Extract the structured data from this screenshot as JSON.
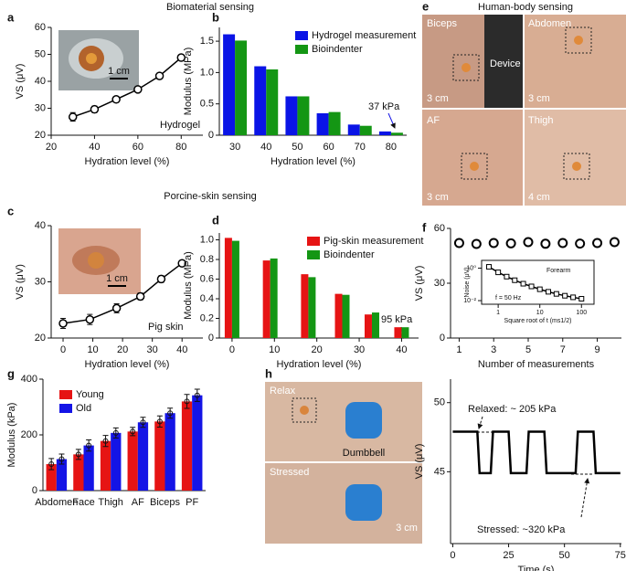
{
  "chart_data": [
    {
      "panel": "a",
      "heading": "Biomaterial sensing",
      "type": "line",
      "x": [
        30,
        40,
        50,
        60,
        70,
        80
      ],
      "values": [
        26.8,
        29.6,
        33.3,
        37.0,
        42.0,
        48.8
      ],
      "errors": [
        1.6,
        1.2,
        0.8,
        0.7,
        0.6,
        0.6
      ],
      "color": "#000000",
      "marker": "circle",
      "xlim": [
        20,
        90
      ],
      "ylim": [
        20,
        60
      ],
      "xticks": [
        20,
        40,
        60,
        80
      ],
      "yticks": [
        20,
        30,
        40,
        50,
        60
      ],
      "xlabel": "Hydration level (%)",
      "ylabel": "VS (μV)",
      "annotations": [
        "Hydrogel"
      ],
      "inset_scale": "1 cm"
    },
    {
      "panel": "b",
      "type": "bar",
      "categories": [
        "30",
        "40",
        "50",
        "60",
        "70",
        "80"
      ],
      "series": [
        {
          "name": "Hydrogel measurement",
          "color": "#0a14e6",
          "values": [
            1.61,
            1.1,
            0.62,
            0.35,
            0.17,
            0.06
          ]
        },
        {
          "name": "Bioindenter",
          "color": "#149614",
          "values": [
            1.51,
            1.05,
            0.62,
            0.37,
            0.15,
            0.04
          ]
        }
      ],
      "ylim": [
        0,
        1.72
      ],
      "yticks": [
        0,
        0.5,
        {
          "value": 1,
          "label": "1.0"
        },
        1.5
      ],
      "xlabel": "Hydration level (%)",
      "ylabel": "Modulus (MPa)",
      "legend": "upper right",
      "annotations": [
        "37 kPa"
      ]
    },
    {
      "panel": "c",
      "heading": "Porcine-skin sensing",
      "type": "line",
      "x": [
        0,
        9,
        18,
        26,
        33,
        40
      ],
      "values": [
        22.6,
        23.3,
        25.3,
        27.4,
        30.5,
        33.3
      ],
      "errors": [
        0.9,
        0.9,
        0.8,
        0.6,
        0.6,
        0.5
      ],
      "color": "#000000",
      "marker": "circle",
      "xlim": [
        -4,
        47
      ],
      "ylim": [
        20,
        40
      ],
      "xticks": [
        0,
        10,
        20,
        30,
        40
      ],
      "yticks": [
        20,
        30,
        40
      ],
      "xlabel": "Hydration level (%)",
      "ylabel": "VS (μV)",
      "annotations": [
        "Pig skin"
      ],
      "inset_scale": "1 cm"
    },
    {
      "panel": "d",
      "type": "bar",
      "x": [
        0,
        9,
        18,
        26,
        33,
        40
      ],
      "series": [
        {
          "name": "Pig-skin measurement",
          "color": "#e61414",
          "values": [
            1.02,
            0.79,
            0.65,
            0.45,
            0.24,
            0.11
          ]
        },
        {
          "name": "Bioindenter",
          "color": "#149614",
          "values": [
            0.99,
            0.81,
            0.62,
            0.44,
            0.26,
            0.11
          ]
        }
      ],
      "xlim": [
        -3,
        44
      ],
      "ylim": [
        0,
        1.07
      ],
      "xticks": [
        0,
        10,
        20,
        30,
        40
      ],
      "yticks": [
        0,
        0.2,
        0.4,
        0.6,
        0.8,
        {
          "value": 1,
          "label": "1.0"
        }
      ],
      "xlabel": "Hydration level (%)",
      "ylabel": "Modulus (MPa)",
      "legend": "upper right",
      "annotations": [
        "95 kPa"
      ]
    },
    {
      "panel": "f",
      "type": "scatter",
      "x": [
        1,
        2,
        3,
        4,
        5,
        6,
        7,
        8,
        9,
        10
      ],
      "values": [
        52,
        51.5,
        52,
        51.8,
        52.5,
        51.6,
        52,
        51.7,
        52,
        52.5
      ],
      "color": "#000000",
      "xlim": [
        0.5,
        10.4
      ],
      "ylim": [
        0,
        60
      ],
      "xticks": [
        1,
        3,
        5,
        7,
        9
      ],
      "yticks": [
        0,
        30,
        60
      ],
      "xlabel": "Number of measurements",
      "ylabel": "VS (μV)"
    },
    {
      "type": "line",
      "xlog": true,
      "ylog": true,
      "x": [
        0.6,
        1,
        1.6,
        2.5,
        4,
        6.3,
        10,
        16,
        25,
        40,
        63,
        100
      ],
      "values": [
        1.2,
        0.55,
        0.3,
        0.18,
        0.11,
        0.075,
        0.05,
        0.035,
        0.026,
        0.02,
        0.016,
        0.013
      ],
      "color": "#000000",
      "marker": "square",
      "xlim": [
        0.4,
        200
      ],
      "ylim": [
        0.006,
        3
      ],
      "xticks": [
        1,
        10,
        100
      ],
      "yticks": [
        {
          "value": 0.01,
          "label": "10⁻²"
        },
        {
          "value": 1,
          "label": "10⁰"
        }
      ],
      "xlabel": "Square root of t (ms1/2)",
      "ylabel": "Noise (μV)",
      "annotations": [
        "Forearm",
        "f = 50 Hz"
      ]
    },
    {
      "panel": "g",
      "type": "bar",
      "categories": [
        "Abdomen",
        "Face",
        "Thigh",
        "AF",
        "Biceps",
        "PF"
      ],
      "series": [
        {
          "name": "Young",
          "color": "#e61414",
          "values": [
            95,
            130,
            178,
            212,
            248,
            320
          ],
          "errors": [
            20,
            18,
            20,
            15,
            20,
            25
          ]
        },
        {
          "name": "Old",
          "color": "#1414e6",
          "values": [
            113,
            162,
            207,
            245,
            278,
            342
          ],
          "errors": [
            18,
            20,
            18,
            18,
            18,
            22
          ]
        }
      ],
      "ylim": [
        0,
        400
      ],
      "yticks": [
        0,
        200,
        400
      ],
      "ylabel": "Modulus (kPa)",
      "legend": "upper left"
    },
    {
      "type": "line",
      "x": [
        0,
        11,
        12,
        17,
        18,
        25,
        26,
        33,
        34,
        41,
        42,
        55,
        56,
        63,
        64,
        75
      ],
      "values": [
        47.9,
        47.9,
        44.9,
        44.9,
        47.9,
        47.9,
        44.9,
        44.9,
        47.9,
        47.9,
        44.9,
        44.9,
        47.9,
        47.9,
        44.9,
        44.9
      ],
      "color": "#000000",
      "marker": "none",
      "xlim": [
        -1,
        75.5
      ],
      "ylim": [
        39.8,
        51.7
      ],
      "xticks": [
        0,
        25,
        50,
        75
      ],
      "yticks": [
        45,
        50
      ],
      "xlabel": "Time (s)",
      "ylabel": "VS (μV)",
      "annotations": [
        "Relaxed: ~ 205 kPa",
        "Stressed: ~320 kPa"
      ]
    }
  ],
  "photos": {
    "e": {
      "panel": "e",
      "heading": "Human-body sensing",
      "items": [
        {
          "label": "Biceps",
          "note": "Device",
          "scale": "3 cm"
        },
        {
          "label": "Abdomen",
          "scale": "3 cm"
        },
        {
          "label": "AF",
          "scale": "3 cm"
        },
        {
          "label": "Thigh",
          "scale": "4 cm"
        }
      ]
    },
    "h": {
      "panel": "h",
      "items": [
        {
          "label": "Relax",
          "note": "Dumbbell"
        },
        {
          "label": "Stressed",
          "scale": "3 cm"
        }
      ]
    }
  }
}
